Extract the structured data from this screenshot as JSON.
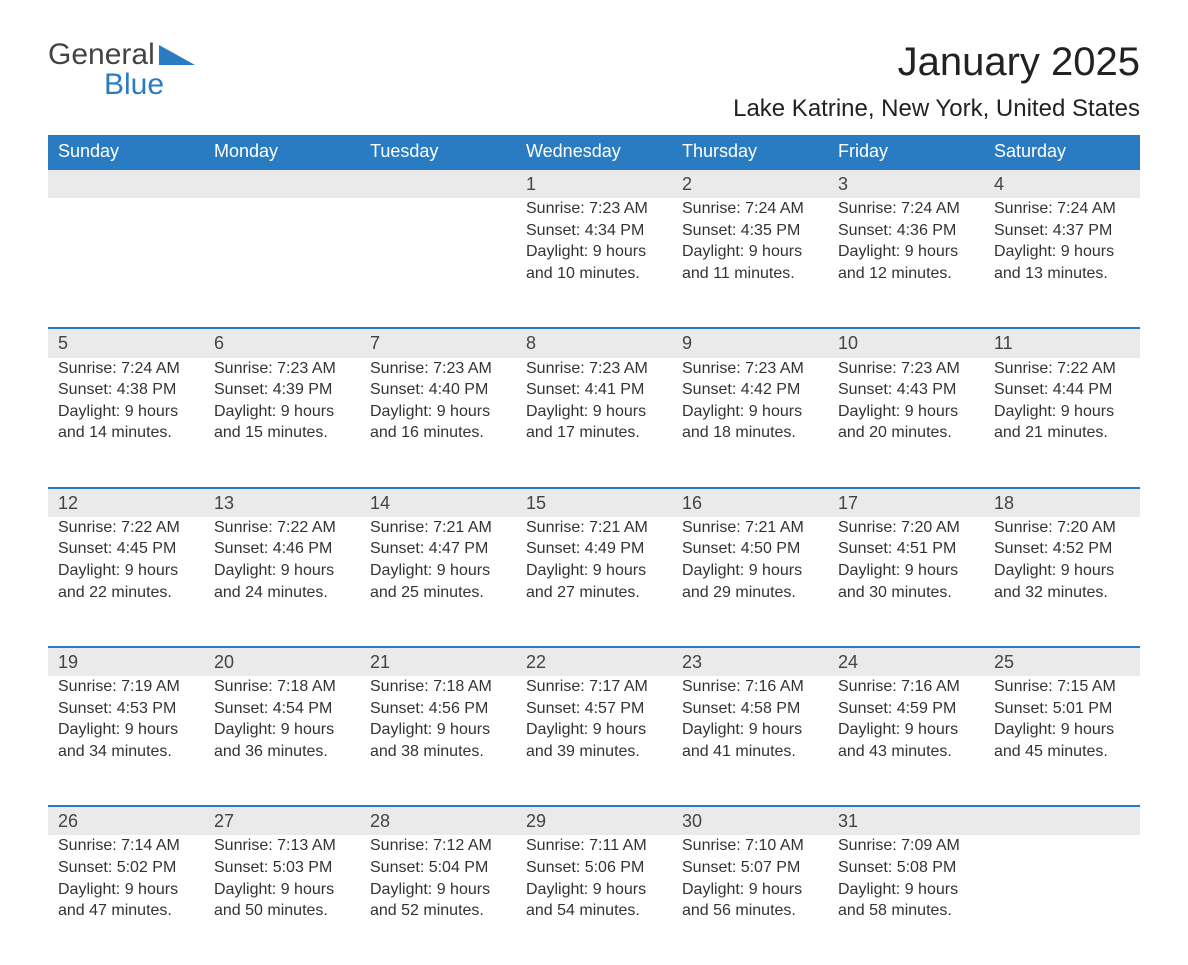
{
  "colors": {
    "brand_blue": "#2a7cc2",
    "header_bg": "#2a7cc2",
    "header_text": "#ffffff",
    "daynum_bg": "#eaeaea",
    "daynum_border": "#2a7cc2",
    "body_text": "#333333",
    "page_bg": "#ffffff"
  },
  "typography": {
    "month_title_fontsize": 40,
    "location_fontsize": 24,
    "dayname_fontsize": 18,
    "cell_fontsize": 16
  },
  "logo": {
    "text1": "General",
    "text2": "Blue"
  },
  "title": "January 2025",
  "location": "Lake Katrine, New York, United States",
  "day_names": [
    "Sunday",
    "Monday",
    "Tuesday",
    "Wednesday",
    "Thursday",
    "Friday",
    "Saturday"
  ],
  "weeks": [
    [
      null,
      null,
      null,
      {
        "d": "1",
        "sr": "7:23 AM",
        "ss": "4:34 PM",
        "dl": "9 hours and 10 minutes."
      },
      {
        "d": "2",
        "sr": "7:24 AM",
        "ss": "4:35 PM",
        "dl": "9 hours and 11 minutes."
      },
      {
        "d": "3",
        "sr": "7:24 AM",
        "ss": "4:36 PM",
        "dl": "9 hours and 12 minutes."
      },
      {
        "d": "4",
        "sr": "7:24 AM",
        "ss": "4:37 PM",
        "dl": "9 hours and 13 minutes."
      }
    ],
    [
      {
        "d": "5",
        "sr": "7:24 AM",
        "ss": "4:38 PM",
        "dl": "9 hours and 14 minutes."
      },
      {
        "d": "6",
        "sr": "7:23 AM",
        "ss": "4:39 PM",
        "dl": "9 hours and 15 minutes."
      },
      {
        "d": "7",
        "sr": "7:23 AM",
        "ss": "4:40 PM",
        "dl": "9 hours and 16 minutes."
      },
      {
        "d": "8",
        "sr": "7:23 AM",
        "ss": "4:41 PM",
        "dl": "9 hours and 17 minutes."
      },
      {
        "d": "9",
        "sr": "7:23 AM",
        "ss": "4:42 PM",
        "dl": "9 hours and 18 minutes."
      },
      {
        "d": "10",
        "sr": "7:23 AM",
        "ss": "4:43 PM",
        "dl": "9 hours and 20 minutes."
      },
      {
        "d": "11",
        "sr": "7:22 AM",
        "ss": "4:44 PM",
        "dl": "9 hours and 21 minutes."
      }
    ],
    [
      {
        "d": "12",
        "sr": "7:22 AM",
        "ss": "4:45 PM",
        "dl": "9 hours and 22 minutes."
      },
      {
        "d": "13",
        "sr": "7:22 AM",
        "ss": "4:46 PM",
        "dl": "9 hours and 24 minutes."
      },
      {
        "d": "14",
        "sr": "7:21 AM",
        "ss": "4:47 PM",
        "dl": "9 hours and 25 minutes."
      },
      {
        "d": "15",
        "sr": "7:21 AM",
        "ss": "4:49 PM",
        "dl": "9 hours and 27 minutes."
      },
      {
        "d": "16",
        "sr": "7:21 AM",
        "ss": "4:50 PM",
        "dl": "9 hours and 29 minutes."
      },
      {
        "d": "17",
        "sr": "7:20 AM",
        "ss": "4:51 PM",
        "dl": "9 hours and 30 minutes."
      },
      {
        "d": "18",
        "sr": "7:20 AM",
        "ss": "4:52 PM",
        "dl": "9 hours and 32 minutes."
      }
    ],
    [
      {
        "d": "19",
        "sr": "7:19 AM",
        "ss": "4:53 PM",
        "dl": "9 hours and 34 minutes."
      },
      {
        "d": "20",
        "sr": "7:18 AM",
        "ss": "4:54 PM",
        "dl": "9 hours and 36 minutes."
      },
      {
        "d": "21",
        "sr": "7:18 AM",
        "ss": "4:56 PM",
        "dl": "9 hours and 38 minutes."
      },
      {
        "d": "22",
        "sr": "7:17 AM",
        "ss": "4:57 PM",
        "dl": "9 hours and 39 minutes."
      },
      {
        "d": "23",
        "sr": "7:16 AM",
        "ss": "4:58 PM",
        "dl": "9 hours and 41 minutes."
      },
      {
        "d": "24",
        "sr": "7:16 AM",
        "ss": "4:59 PM",
        "dl": "9 hours and 43 minutes."
      },
      {
        "d": "25",
        "sr": "7:15 AM",
        "ss": "5:01 PM",
        "dl": "9 hours and 45 minutes."
      }
    ],
    [
      {
        "d": "26",
        "sr": "7:14 AM",
        "ss": "5:02 PM",
        "dl": "9 hours and 47 minutes."
      },
      {
        "d": "27",
        "sr": "7:13 AM",
        "ss": "5:03 PM",
        "dl": "9 hours and 50 minutes."
      },
      {
        "d": "28",
        "sr": "7:12 AM",
        "ss": "5:04 PM",
        "dl": "9 hours and 52 minutes."
      },
      {
        "d": "29",
        "sr": "7:11 AM",
        "ss": "5:06 PM",
        "dl": "9 hours and 54 minutes."
      },
      {
        "d": "30",
        "sr": "7:10 AM",
        "ss": "5:07 PM",
        "dl": "9 hours and 56 minutes."
      },
      {
        "d": "31",
        "sr": "7:09 AM",
        "ss": "5:08 PM",
        "dl": "9 hours and 58 minutes."
      },
      null
    ]
  ],
  "labels": {
    "sunrise": "Sunrise: ",
    "sunset": "Sunset: ",
    "daylight": "Daylight: "
  }
}
